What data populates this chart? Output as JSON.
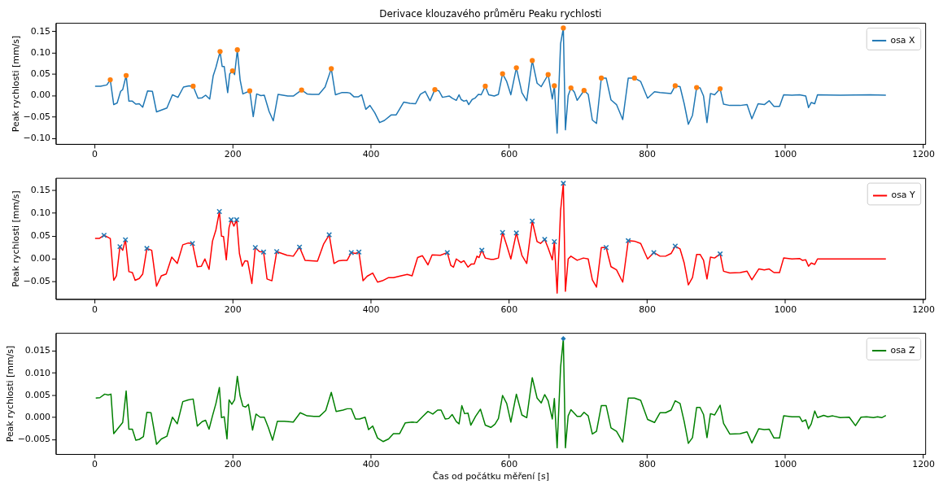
{
  "chart_data": [
    {
      "type": "line",
      "title": "Derivace klouzavého průměru Peaku rychlosti",
      "ylabel": "Peak rychlosti [mm/s]",
      "legend": "top right",
      "grid": false,
      "xlim": [
        -56,
        1203
      ],
      "xticks": [
        0,
        200,
        400,
        600,
        800,
        1000,
        1200
      ],
      "ylim": [
        -0.114,
        0.169
      ],
      "yticks": [
        {
          "value": -0.1,
          "label": "−0.10"
        },
        {
          "value": -0.05,
          "label": "−0.05"
        },
        {
          "value": 0,
          "label": "0.00"
        },
        {
          "value": 0.05,
          "label": "0.05"
        },
        {
          "value": 0.1,
          "label": "0.10"
        },
        {
          "value": 0.15,
          "label": "0.15"
        }
      ],
      "series": [
        {
          "type": "line",
          "name": "osa X",
          "color": "#1f77b4",
          "x": [
            1,
            9,
            18,
            23,
            28,
            33,
            38,
            41,
            46,
            50,
            55,
            60,
            65,
            70,
            77,
            84,
            90,
            105,
            113,
            121,
            129,
            137,
            143,
            150,
            156,
            161,
            167,
            172,
            176,
            182,
            185,
            188,
            193,
            196,
            200,
            203,
            207,
            211,
            215,
            225,
            230,
            235,
            241,
            246,
            253,
            259,
            266,
            280,
            288,
            300,
            308,
            315,
            325,
            334,
            343,
            349,
            358,
            366,
            370,
            376,
            382,
            387,
            393,
            399,
            406,
            413,
            420,
            430,
            437,
            448,
            457,
            465,
            472,
            479,
            486,
            493,
            499,
            504,
            514,
            518,
            524,
            528,
            531,
            535,
            539,
            542,
            547,
            551,
            556,
            560,
            566,
            571,
            579,
            585,
            591,
            597,
            603,
            611,
            619,
            626,
            634,
            641,
            647,
            657,
            663,
            666,
            670,
            675,
            679,
            682,
            686,
            690,
            695,
            699,
            709,
            715,
            721,
            727,
            734,
            741,
            748,
            756,
            765,
            773,
            782,
            791,
            801,
            811,
            819,
            835,
            841,
            848,
            854,
            860,
            866,
            872,
            877,
            882,
            887,
            892,
            898,
            906,
            911,
            920,
            935,
            945,
            952,
            961,
            970,
            977,
            984,
            992,
            998,
            1010,
            1021,
            1030,
            1034,
            1038,
            1043,
            1047,
            1080,
            1123,
            1146
          ],
          "values": [
            0.021,
            0.021,
            0.024,
            0.036,
            -0.022,
            -0.018,
            0.009,
            0.013,
            0.046,
            -0.014,
            -0.014,
            -0.021,
            -0.02,
            -0.028,
            0.01,
            0.009,
            -0.039,
            -0.03,
            0.001,
            -0.005,
            0.019,
            0.022,
            0.021,
            -0.007,
            -0.006,
            0.0,
            -0.009,
            0.045,
            0.065,
            0.102,
            0.067,
            0.067,
            0.006,
            0.05,
            0.057,
            0.048,
            0.106,
            0.036,
            0.003,
            0.01,
            -0.05,
            0.003,
            -0.001,
            0.0,
            -0.038,
            -0.06,
            0.002,
            -0.002,
            -0.002,
            0.012,
            0.003,
            0.002,
            0.002,
            0.019,
            0.062,
            0.001,
            0.006,
            0.006,
            0.005,
            -0.004,
            -0.004,
            0.001,
            -0.033,
            -0.024,
            -0.041,
            -0.064,
            -0.059,
            -0.046,
            -0.046,
            -0.016,
            -0.019,
            -0.02,
            0.002,
            0.009,
            -0.013,
            0.013,
            0.01,
            -0.005,
            -0.002,
            -0.007,
            -0.012,
            0.001,
            -0.01,
            -0.014,
            -0.012,
            -0.022,
            -0.01,
            -0.007,
            0.002,
            0.001,
            0.021,
            0.001,
            -0.002,
            0.002,
            0.05,
            0.032,
            0.001,
            0.064,
            0.006,
            -0.013,
            0.081,
            0.028,
            0.02,
            0.048,
            -0.009,
            0.022,
            -0.089,
            0.12,
            0.157,
            -0.081,
            -0.001,
            0.017,
            0.007,
            -0.012,
            0.011,
            0.002,
            -0.058,
            -0.066,
            0.04,
            0.04,
            -0.011,
            -0.022,
            -0.057,
            0.04,
            0.04,
            0.032,
            -0.007,
            0.008,
            0.006,
            0.004,
            0.022,
            0.02,
            -0.02,
            -0.068,
            -0.047,
            0.018,
            0.017,
            -0.002,
            -0.064,
            0.004,
            0.001,
            0.015,
            -0.021,
            -0.024,
            -0.024,
            -0.022,
            -0.055,
            -0.02,
            -0.022,
            -0.013,
            -0.026,
            -0.026,
            0.001,
            0.0,
            0.001,
            -0.002,
            -0.029,
            -0.017,
            -0.02,
            0.001,
            0.0,
            0.001,
            0.0
          ]
        },
        {
          "type": "scatter",
          "color": "#ff7f0e",
          "marker": "circle",
          "x": [
            23,
            46,
            143,
            182,
            200,
            207,
            225,
            300,
            343,
            493,
            566,
            591,
            611,
            634,
            657,
            666,
            679,
            690,
            709,
            734,
            782,
            841,
            872,
            906
          ],
          "values": [
            0.036,
            0.046,
            0.021,
            0.102,
            0.057,
            0.106,
            0.01,
            0.012,
            0.062,
            0.013,
            0.021,
            0.05,
            0.064,
            0.081,
            0.048,
            0.022,
            0.157,
            0.017,
            0.011,
            0.04,
            0.04,
            0.022,
            0.018,
            0.015
          ]
        }
      ]
    },
    {
      "type": "line",
      "ylabel": "Peak rychlosti [mm/s]",
      "legend": "top right",
      "grid": false,
      "xlim": [
        -56,
        1203
      ],
      "xticks": [
        0,
        200,
        400,
        600,
        800,
        1000,
        1200
      ],
      "ylim": [
        -0.089,
        0.177
      ],
      "yticks": [
        {
          "value": -0.05,
          "label": "−0.05"
        },
        {
          "value": 0,
          "label": "0.00"
        },
        {
          "value": 0.05,
          "label": "0.05"
        },
        {
          "value": 0.1,
          "label": "0.10"
        },
        {
          "value": 0.15,
          "label": "0.15"
        }
      ],
      "series": [
        {
          "type": "line",
          "name": "osa Y",
          "color": "#ff0000",
          "x": [
            1,
            7,
            14,
            23,
            28,
            32,
            37,
            41,
            45,
            50,
            55,
            59,
            65,
            70,
            76,
            83,
            90,
            97,
            104,
            112,
            120,
            128,
            136,
            142,
            149,
            155,
            160,
            166,
            171,
            176,
            181,
            184,
            187,
            191,
            195,
            198,
            202,
            206,
            210,
            214,
            218,
            222,
            228,
            233,
            239,
            245,
            250,
            257,
            264,
            279,
            288,
            297,
            305,
            323,
            332,
            340,
            347,
            354,
            360,
            366,
            372,
            378,
            383,
            389,
            395,
            403,
            410,
            417,
            426,
            433,
            444,
            453,
            460,
            468,
            475,
            483,
            489,
            501,
            511,
            516,
            520,
            524,
            531,
            535,
            541,
            546,
            550,
            554,
            557,
            561,
            566,
            574,
            578,
            585,
            591,
            597,
            603,
            611,
            619,
            626,
            634,
            641,
            646,
            652,
            657,
            663,
            666,
            670,
            675,
            679,
            682,
            686,
            690,
            699,
            708,
            715,
            721,
            727,
            734,
            741,
            748,
            756,
            765,
            773,
            782,
            791,
            801,
            810,
            819,
            827,
            835,
            841,
            848,
            854,
            860,
            866,
            872,
            877,
            882,
            887,
            892,
            898,
            906,
            911,
            920,
            935,
            945,
            952,
            962,
            970,
            977,
            984,
            992,
            998,
            1010,
            1021,
            1025,
            1030,
            1034,
            1038,
            1043,
            1047,
            1080,
            1146
          ],
          "values": [
            0.044,
            0.044,
            0.051,
            0.044,
            -0.048,
            -0.038,
            0.026,
            0.018,
            0.041,
            -0.029,
            -0.031,
            -0.048,
            -0.044,
            -0.034,
            0.022,
            0.018,
            -0.061,
            -0.038,
            -0.034,
            0.003,
            -0.011,
            0.03,
            0.034,
            0.033,
            -0.018,
            -0.017,
            -0.001,
            -0.024,
            0.038,
            0.063,
            0.103,
            0.049,
            0.048,
            -0.003,
            0.068,
            0.085,
            0.071,
            0.085,
            0.011,
            -0.017,
            -0.005,
            -0.006,
            -0.055,
            0.024,
            0.015,
            0.014,
            -0.045,
            -0.049,
            0.015,
            0.007,
            0.005,
            0.025,
            -0.004,
            -0.006,
            0.032,
            0.052,
            -0.011,
            -0.005,
            -0.004,
            -0.004,
            0.013,
            0.011,
            0.014,
            -0.049,
            -0.039,
            -0.032,
            -0.052,
            -0.049,
            -0.042,
            -0.042,
            -0.038,
            -0.035,
            -0.038,
            0.002,
            0.006,
            -0.014,
            0.008,
            0.007,
            0.013,
            -0.015,
            -0.019,
            -0.001,
            -0.009,
            -0.005,
            -0.019,
            -0.012,
            -0.012,
            0.005,
            0.002,
            0.018,
            0.001,
            -0.002,
            -0.002,
            0.001,
            0.057,
            0.029,
            -0.001,
            0.056,
            0.007,
            -0.011,
            0.082,
            0.037,
            0.033,
            0.042,
            0.023,
            -0.003,
            0.037,
            -0.076,
            0.105,
            0.165,
            -0.072,
            -0.001,
            0.005,
            -0.004,
            0.001,
            -0.001,
            -0.047,
            -0.063,
            0.024,
            0.024,
            -0.018,
            -0.025,
            -0.052,
            0.039,
            0.038,
            0.033,
            -0.001,
            0.013,
            0.005,
            0.005,
            0.011,
            0.027,
            0.021,
            -0.01,
            -0.058,
            -0.042,
            0.009,
            0.009,
            -0.004,
            -0.045,
            0.003,
            0.001,
            0.01,
            -0.028,
            -0.032,
            -0.031,
            -0.028,
            -0.047,
            -0.023,
            -0.025,
            -0.023,
            -0.031,
            -0.031,
            0.001,
            -0.001,
            0.0,
            -0.004,
            -0.003,
            -0.017,
            -0.01,
            -0.013,
            -0.001,
            -0.001,
            -0.001
          ]
        },
        {
          "type": "scatter",
          "color": "#1f77b4",
          "marker": "cross",
          "x": [
            14,
            37,
            45,
            76,
            142,
            181,
            198,
            206,
            233,
            245,
            264,
            297,
            340,
            372,
            383,
            511,
            561,
            591,
            611,
            634,
            652,
            666,
            679,
            741,
            773,
            810,
            841,
            906
          ],
          "values": [
            0.051,
            0.026,
            0.041,
            0.022,
            0.033,
            0.103,
            0.085,
            0.085,
            0.024,
            0.014,
            0.015,
            0.025,
            0.052,
            0.013,
            0.014,
            0.013,
            0.018,
            0.057,
            0.056,
            0.082,
            0.042,
            0.037,
            0.165,
            0.024,
            0.039,
            0.013,
            0.027,
            0.01
          ]
        }
      ]
    },
    {
      "type": "line",
      "ylabel": "Peak rychlosti [mm/s]",
      "xlabel": "Čas od počátku měření [s]",
      "legend": "top right",
      "grid": false,
      "xlim": [
        -56,
        1203
      ],
      "xticks": [
        0,
        200,
        400,
        600,
        800,
        1000,
        1200
      ],
      "ylim": [
        -0.0083,
        0.019
      ],
      "yticks": [
        {
          "value": -0.005,
          "label": "−0.005"
        },
        {
          "value": 0,
          "label": "0.000"
        },
        {
          "value": 0.005,
          "label": "0.005"
        },
        {
          "value": 0.01,
          "label": "0.010"
        },
        {
          "value": 0.015,
          "label": "0.015"
        }
      ],
      "series": [
        {
          "type": "line",
          "name": "osa Z",
          "color": "#008000",
          "x": [
            2,
            8,
            15,
            20,
            24,
            28,
            41,
            46,
            50,
            55,
            60,
            65,
            71,
            76,
            82,
            90,
            97,
            105,
            113,
            120,
            128,
            136,
            143,
            149,
            156,
            161,
            166,
            171,
            176,
            181,
            184,
            188,
            192,
            195,
            199,
            203,
            207,
            211,
            215,
            219,
            223,
            229,
            234,
            240,
            246,
            252,
            258,
            265,
            275,
            288,
            298,
            308,
            318,
            326,
            335,
            343,
            350,
            360,
            366,
            372,
            378,
            384,
            392,
            397,
            403,
            410,
            418,
            426,
            433,
            442,
            450,
            460,
            467,
            475,
            483,
            490,
            497,
            502,
            508,
            513,
            518,
            524,
            528,
            532,
            536,
            541,
            545,
            552,
            559,
            566,
            574,
            580,
            585,
            591,
            597,
            603,
            611,
            619,
            626,
            634,
            641,
            647,
            652,
            657,
            663,
            666,
            670,
            675,
            679,
            682,
            686,
            690,
            699,
            704,
            709,
            715,
            721,
            727,
            734,
            741,
            748,
            756,
            765,
            773,
            782,
            791,
            801,
            811,
            819,
            827,
            835,
            841,
            848,
            854,
            860,
            866,
            872,
            877,
            882,
            887,
            892,
            898,
            906,
            911,
            920,
            935,
            945,
            952,
            962,
            970,
            977,
            984,
            992,
            998,
            1010,
            1021,
            1025,
            1030,
            1034,
            1038,
            1043,
            1047,
            1056,
            1062,
            1069,
            1080,
            1093,
            1102,
            1110,
            1118,
            1128,
            1134,
            1140,
            1146
          ],
          "values": [
            0.0043,
            0.0044,
            0.0052,
            0.005,
            0.0052,
            -0.0037,
            -0.0012,
            0.0059,
            -0.0027,
            -0.0027,
            -0.0052,
            -0.005,
            -0.0044,
            0.0011,
            0.001,
            -0.0061,
            -0.0049,
            -0.0043,
            0.0,
            -0.0015,
            0.0035,
            0.0039,
            0.0041,
            -0.002,
            -0.001,
            -0.0007,
            -0.0027,
            0.0003,
            0.0031,
            0.0067,
            -0.0001,
            0.0001,
            -0.0049,
            0.0039,
            0.0029,
            0.0039,
            0.0092,
            0.0048,
            0.0025,
            0.0023,
            0.0029,
            -0.0029,
            0.0007,
            0.0,
            0.0,
            -0.0024,
            -0.0052,
            -0.0009,
            -0.0009,
            -0.0011,
            0.001,
            0.0003,
            0.0002,
            0.0002,
            0.0015,
            0.0056,
            0.0013,
            0.0016,
            0.0019,
            0.0019,
            -0.0004,
            -0.0004,
            0.0,
            -0.0028,
            -0.002,
            -0.0047,
            -0.0055,
            -0.0049,
            -0.0037,
            -0.0037,
            -0.0013,
            -0.0011,
            -0.0012,
            0.0001,
            0.0013,
            0.0007,
            0.0016,
            0.0016,
            -0.0004,
            -0.0003,
            0.0006,
            -0.001,
            -0.0015,
            0.0026,
            0.0008,
            0.0009,
            -0.0018,
            0.0002,
            0.0018,
            -0.0018,
            -0.0023,
            -0.0016,
            -0.0003,
            0.0049,
            0.0031,
            -0.0011,
            0.0052,
            0.0005,
            -0.0001,
            0.0089,
            0.0043,
            0.0032,
            0.0051,
            0.0037,
            -0.0004,
            0.0042,
            -0.0069,
            0.0112,
            0.0177,
            -0.0069,
            0.0003,
            0.0017,
            0.0002,
            0.0002,
            0.0011,
            0.0003,
            -0.0038,
            -0.0032,
            0.0026,
            0.0026,
            -0.0024,
            -0.0032,
            -0.0056,
            0.0043,
            0.0043,
            0.0038,
            -0.0005,
            -0.0012,
            0.001,
            0.001,
            0.0016,
            0.0037,
            0.0031,
            -0.001,
            -0.0059,
            -0.0046,
            0.0022,
            0.0022,
            0.0006,
            -0.0046,
            0.0008,
            0.0005,
            0.0027,
            -0.0014,
            -0.0038,
            -0.0037,
            -0.0033,
            -0.0058,
            -0.0026,
            -0.0028,
            -0.0027,
            -0.0047,
            -0.0047,
            0.0003,
            0.0001,
            0.0001,
            -0.001,
            -0.0006,
            -0.0026,
            -0.0015,
            0.0014,
            -0.0001,
            0.0004,
            0.0001,
            0.0003,
            -0.0001,
            0.0,
            -0.0019,
            0.0,
            0.0001,
            -0.0001,
            0.0001,
            -0.0001,
            0.0004
          ]
        },
        {
          "type": "scatter",
          "color": "#1f77b4",
          "marker": "diamond",
          "x": [
            679
          ],
          "values": [
            0.0177
          ]
        }
      ]
    }
  ]
}
